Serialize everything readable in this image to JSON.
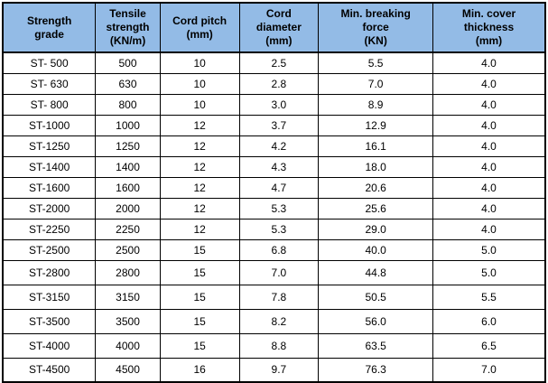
{
  "colors": {
    "header_bg": "#93BBE6",
    "border": "#000000",
    "text": "#000000"
  },
  "table": {
    "columns": [
      "Strength\ngrade",
      "Tensile\nstrength\n(KN/m)",
      "Cord pitch\n(mm)",
      "Cord\ndiameter\n(mm)",
      "Min. breaking\nforce\n(KN)",
      "Min. cover\nthickness\n(mm)"
    ],
    "rows": [
      [
        "ST- 500",
        "500",
        "10",
        "2.5",
        "5.5",
        "4.0"
      ],
      [
        "ST- 630",
        "630",
        "10",
        "2.8",
        "7.0",
        "4.0"
      ],
      [
        "ST- 800",
        "800",
        "10",
        "3.0",
        "8.9",
        "4.0"
      ],
      [
        "ST-1000",
        "1000",
        "12",
        "3.7",
        "12.9",
        "4.0"
      ],
      [
        "ST-1250",
        "1250",
        "12",
        "4.2",
        "16.1",
        "4.0"
      ],
      [
        "ST-1400",
        "1400",
        "12",
        "4.3",
        "18.0",
        "4.0"
      ],
      [
        "ST-1600",
        "1600",
        "12",
        "4.7",
        "20.6",
        "4.0"
      ],
      [
        "ST-2000",
        "2000",
        "12",
        "5.3",
        "25.6",
        "4.0"
      ],
      [
        "ST-2250",
        "2250",
        "12",
        "5.3",
        "29.0",
        "4.0"
      ],
      [
        "ST-2500",
        "2500",
        "15",
        "6.8",
        "40.0",
        "5.0"
      ],
      [
        "ST-2800",
        "2800",
        "15",
        "7.0",
        "44.8",
        "5.0"
      ],
      [
        "ST-3150",
        "3150",
        "15",
        "7.8",
        "50.5",
        "5.5"
      ],
      [
        "ST-3500",
        "3500",
        "15",
        "8.2",
        "56.0",
        "6.0"
      ],
      [
        "ST-4000",
        "4000",
        "15",
        "8.8",
        "63.5",
        "6.5"
      ],
      [
        "ST-4500",
        "4500",
        "16",
        "9.7",
        "76.3",
        "7.0"
      ]
    ]
  }
}
